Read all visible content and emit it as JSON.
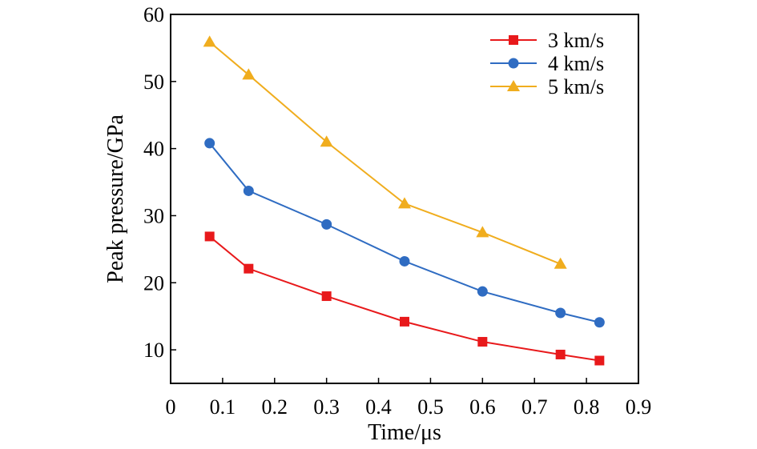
{
  "chart_data": {
    "type": "line",
    "title": "",
    "xlabel": "Time/μs",
    "ylabel": "Peak pressure/GPa",
    "xlim": [
      0,
      0.9
    ],
    "ylim": [
      5,
      60
    ],
    "xticks": [
      "0",
      "0.1",
      "0.2",
      "0.3",
      "0.4",
      "0.5",
      "0.6",
      "0.7",
      "0.8",
      "0.9"
    ],
    "yticks": [
      "10",
      "20",
      "30",
      "40",
      "50",
      "60"
    ],
    "grid": false,
    "legend_position": "top-right",
    "series": [
      {
        "name": "3 km/s",
        "marker": "square",
        "color": "#e8191b",
        "x": [
          0.075,
          0.15,
          0.3,
          0.45,
          0.6,
          0.75,
          0.825
        ],
        "y": [
          26.9,
          22.1,
          18.0,
          14.2,
          11.2,
          9.3,
          8.4
        ]
      },
      {
        "name": "4 km/s",
        "marker": "circle",
        "color": "#2f6cc2",
        "x": [
          0.075,
          0.15,
          0.3,
          0.45,
          0.6,
          0.75,
          0.825
        ],
        "y": [
          40.8,
          33.7,
          28.7,
          23.2,
          18.7,
          15.5,
          14.1
        ]
      },
      {
        "name": "5 km/s",
        "marker": "triangle",
        "color": "#f0ad1e",
        "x": [
          0.075,
          0.15,
          0.3,
          0.45,
          0.6,
          0.75
        ],
        "y": [
          55.9,
          51.0,
          41.0,
          31.8,
          27.5,
          22.8
        ]
      }
    ]
  }
}
